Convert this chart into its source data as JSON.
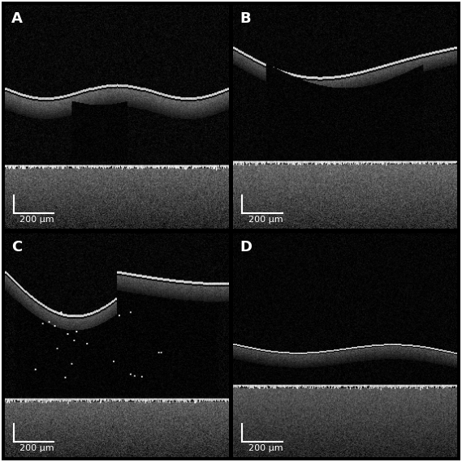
{
  "figure_size": [
    5.69,
    5.7
  ],
  "dpi": 100,
  "background_color": "#000000",
  "border_color": "#ffffff",
  "border_lw": 1.5,
  "panel_labels": [
    "A",
    "B",
    "C",
    "D"
  ],
  "label_fontsize": 13,
  "label_color": "#ffffff",
  "scalebar_text": "200 μm",
  "scalebar_fontsize": 8,
  "scalebar_color": "#ffffff",
  "grid_rows": 2,
  "grid_cols": 2,
  "hspace": 0.04,
  "wspace": 0.04
}
